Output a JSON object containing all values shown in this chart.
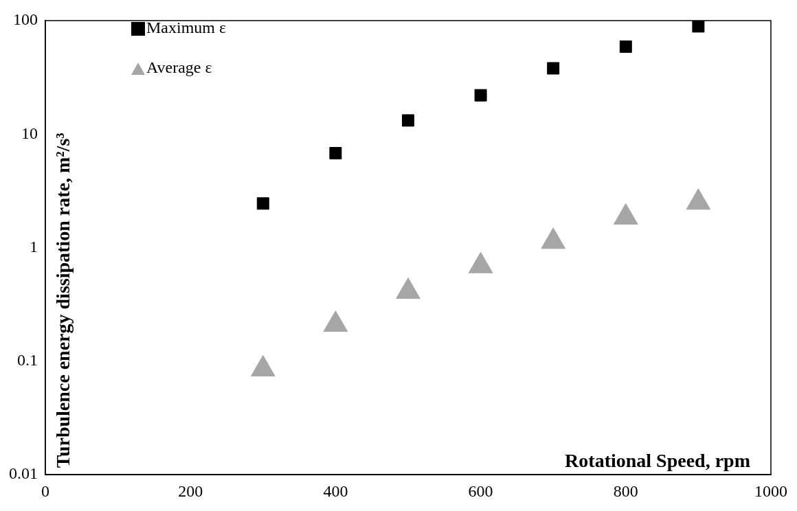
{
  "chart_data": {
    "type": "scatter",
    "xlabel": "Rotational Speed, rpm",
    "ylabel": "Turbulence energy dissipation rate, m²/s³",
    "x": [
      300,
      400,
      500,
      600,
      700,
      800,
      900
    ],
    "series": [
      {
        "name": "Maximum ε",
        "color": "#000000",
        "marker": "square",
        "values": [
          2.45,
          6.8,
          13.2,
          22,
          38,
          59,
          89
        ]
      },
      {
        "name": "Average ε",
        "color": "#a6a6a6",
        "marker": "triangle",
        "values": [
          0.085,
          0.21,
          0.41,
          0.69,
          1.13,
          1.85,
          2.5
        ]
      }
    ],
    "xlim": [
      0,
      1000
    ],
    "xticks": [
      0,
      200,
      400,
      600,
      800,
      1000
    ],
    "ylim": [
      0.01,
      100
    ],
    "yticks": [
      0.01,
      0.1,
      1,
      10,
      100
    ],
    "log": "y",
    "legend": "top left"
  }
}
